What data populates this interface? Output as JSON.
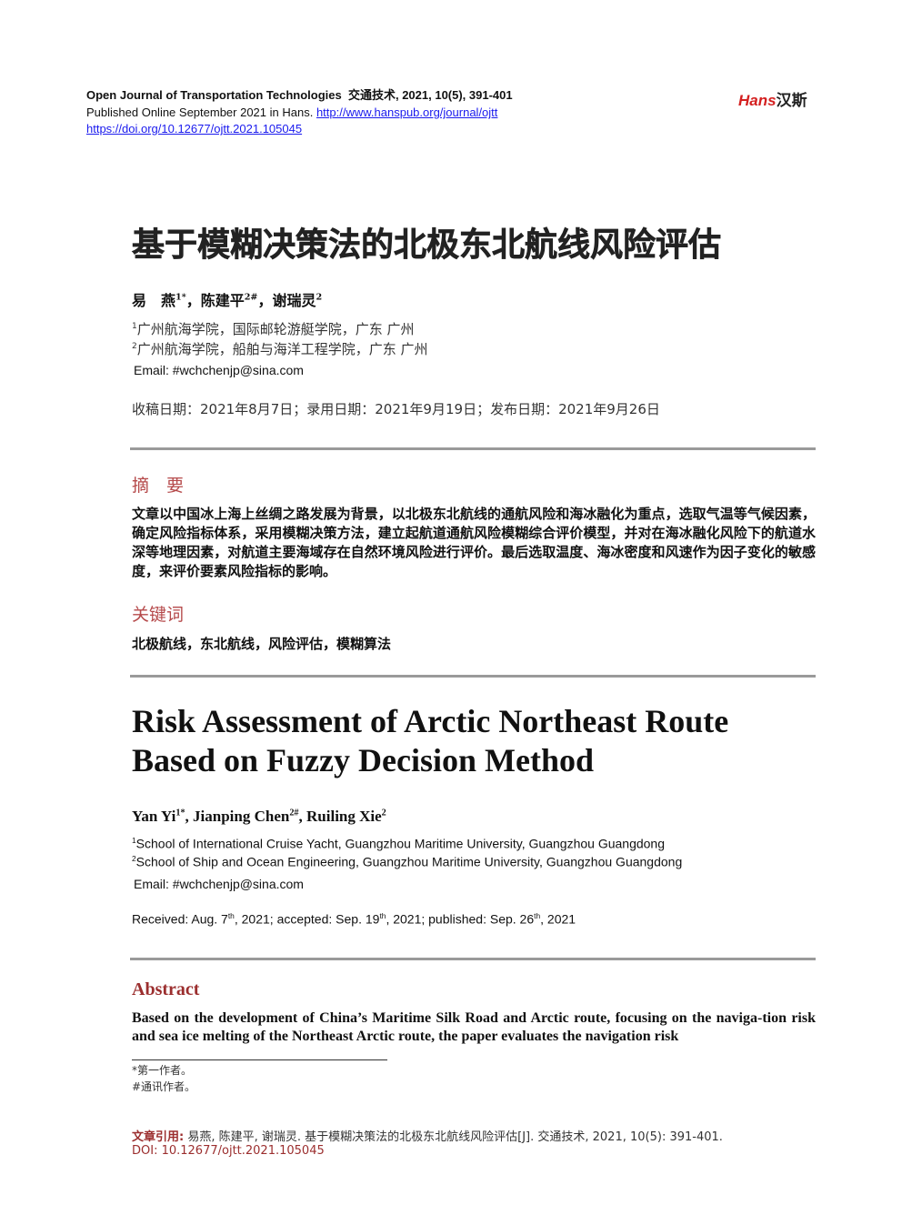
{
  "header": {
    "journal": "Open Journal of Transportation Technologies",
    "journal_cn": "交通技术, 2021, 10(5), 391-401",
    "published": "Published Online September 2021 in Hans.",
    "journal_url": "http://www.hanspub.org/journal/ojtt",
    "doi_url": "https://doi.org/10.12677/ojtt.2021.105045",
    "logo_latin": "Hans",
    "logo_cn": "汉斯",
    "logo_color": "#d42020"
  },
  "cn": {
    "title": "基于模糊决策法的北极东北航线风险评估",
    "authors": [
      {
        "name": "易　燕",
        "sup": "1*"
      },
      {
        "name": "陈建平",
        "sup": "2#"
      },
      {
        "name": "谢瑞灵",
        "sup": "2"
      }
    ],
    "affiliations": [
      {
        "sup": "1",
        "text": "广州航海学院，国际邮轮游艇学院，广东  广州"
      },
      {
        "sup": "2",
        "text": "广州航海学院，船舶与海洋工程学院，广东  广州"
      }
    ],
    "email": "Email: #wchchenjp@sina.com",
    "dates": "收稿日期：2021年8月7日；录用日期：2021年9月19日；发布日期：2021年9月26日",
    "abstract_heading": "摘　要",
    "abstract": "文章以中国冰上海上丝绸之路发展为背景，以北极东北航线的通航风险和海冰融化为重点，选取气温等气候因素，确定风险指标体系，采用模糊决策方法，建立起航道通航风险模糊综合评价模型，并对在海冰融化风险下的航道水深等地理因素，对航道主要海域存在自然环境风险进行评价。最后选取温度、海冰密度和风速作为因子变化的敏感度，来评价要素风险指标的影响。",
    "keywords_heading": "关键词",
    "keywords": "北极航线，东北航线，风险评估，模糊算法"
  },
  "en": {
    "title_line1": "Risk Assessment of Arctic Northeast Route",
    "title_line2": "Based on Fuzzy Decision Method",
    "authors": [
      {
        "name": "Yan Yi",
        "sup": "1*"
      },
      {
        "name": "Jianping Chen",
        "sup": "2#"
      },
      {
        "name": "Ruiling Xie",
        "sup": "2"
      }
    ],
    "affiliations": [
      {
        "sup": "1",
        "text": "School of International Cruise Yacht, Guangzhou Maritime University, Guangzhou Guangdong"
      },
      {
        "sup": "2",
        "text": "School of Ship and Ocean Engineering, Guangzhou Maritime University, Guangzhou Guangdong"
      }
    ],
    "email": "Email: #wchchenjp@sina.com",
    "dates": {
      "received": "Received: Aug. 7",
      "received_sup": "th",
      "accepted": ", 2021; accepted: Sep. 19",
      "accepted_sup": "th",
      "published": ", 2021; published: Sep. 26",
      "published_sup": "th",
      "year": ", 2021"
    },
    "abstract_heading": "Abstract",
    "abstract": "Based on the development of China’s Maritime Silk Road and Arctic route, focusing on the naviga-tion risk and sea ice melting of the Northeast Arctic route, the paper evaluates the navigation risk"
  },
  "footnotes": [
    "*第一作者。",
    "#通讯作者。"
  ],
  "citation": {
    "label": "文章引用:",
    "text": "易燕, 陈建平, 谢瑞灵. 基于模糊决策法的北极东北航线风险评估[J]. 交通技术, 2021, 10(5): 391-401.",
    "doi": "DOI: 10.12677/ojtt.2021.105045"
  }
}
